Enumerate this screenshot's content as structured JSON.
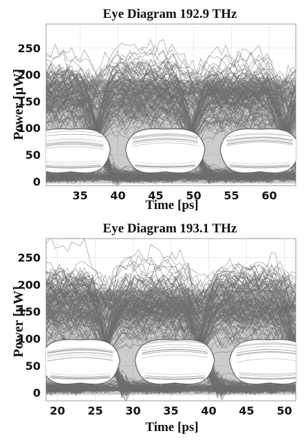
{
  "chart_data": [
    {
      "type": "line",
      "title": "Eye Diagram 192.9 THz",
      "xlabel": "Time [ps]",
      "ylabel": "Power [μW]",
      "xlim": [
        30.5,
        63.5
      ],
      "ylim": [
        -8,
        295
      ],
      "xticks": [
        35,
        40,
        45,
        50,
        55,
        60
      ],
      "xtick_labels": [
        "35",
        "40",
        "45",
        "50",
        "55",
        "60"
      ],
      "yticks": [
        0,
        50,
        100,
        150,
        200,
        250
      ],
      "ytick_labels": [
        "0",
        "50",
        "100",
        "150",
        "200",
        "250"
      ],
      "grid": true,
      "bit_period": 12.5,
      "eye_centers": [
        33.75,
        46.25,
        58.75
      ],
      "eye_centers_drawn": [
        46.25
      ],
      "trace_color": "#6d6d6d",
      "series": [
        {
          "values": []
        }
      ]
    },
    {
      "type": "line",
      "title": "Eye Diagram 193.1 THz",
      "xlabel": "Time [ps]",
      "ylabel": "Power [μW]",
      "xlim": [
        18.5,
        51.5
      ],
      "ylim": [
        -15,
        285
      ],
      "xticks": [
        20,
        25,
        30,
        35,
        40,
        45,
        50
      ],
      "xtick_labels": [
        "20",
        "25",
        "30",
        "35",
        "40",
        "45",
        "50"
      ],
      "yticks": [
        0,
        50,
        100,
        150,
        200,
        250
      ],
      "ytick_labels": [
        "0",
        "50",
        "100",
        "150",
        "200",
        "250"
      ],
      "grid": true,
      "bit_period": 12.5,
      "eye_centers": [
        23.0,
        35.5,
        48.0
      ],
      "eye_centers_drawn": [
        35.5
      ],
      "trace_color": "#6d6d6d",
      "series": [
        {
          "values": []
        }
      ]
    }
  ]
}
